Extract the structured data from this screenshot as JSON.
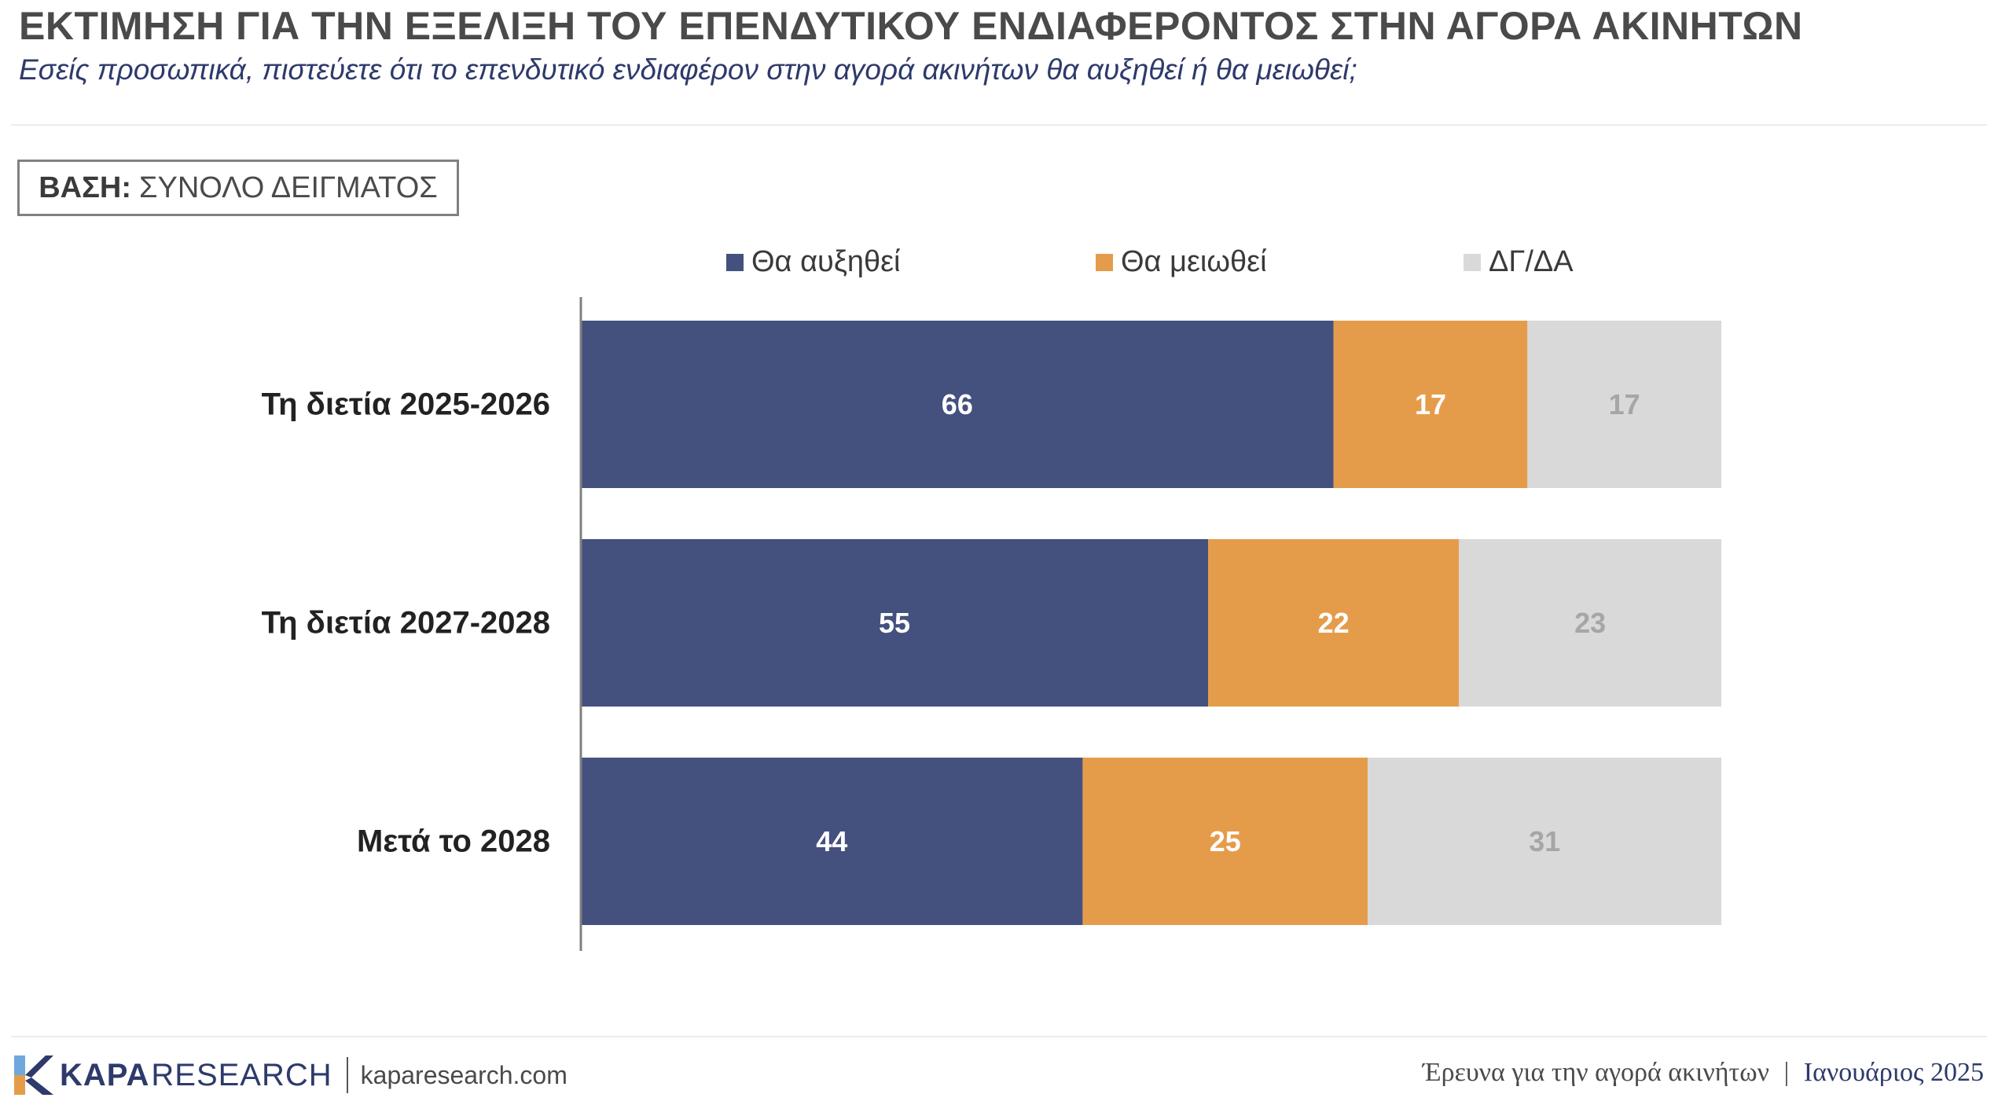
{
  "header": {
    "title": "ΕΚΤΙΜΗΣΗ ΓΙΑ ΤΗΝ ΕΞΕΛΙΞΗ ΤΟΥ ΕΠΕΝΔΥΤΙΚΟΥ ΕΝΔΙΑΦΕΡΟΝΤΟΣ ΣΤΗΝ ΑΓΟΡΑ ΑΚΙΝΗΤΩΝ",
    "subtitle": "Εσείς προσωπικά, πιστεύετε ότι το επενδυτικό ενδιαφέρον στην αγορά ακινήτων θα αυξηθεί ή θα μειωθεί;"
  },
  "base": {
    "label": "ΒΑΣΗ:",
    "value": "ΣΥΝΟΛΟ ΔΕΙΓΜΑΤΟΣ"
  },
  "chart_data": {
    "type": "bar",
    "orientation": "horizontal",
    "stacked": true,
    "categories": [
      "Τη διετία 2025-2026",
      "Τη διετία 2027-2028",
      "Μετά το 2028"
    ],
    "series": [
      {
        "name": "Θα αυξηθεί",
        "values": [
          66,
          55,
          44
        ],
        "color": "#44517e",
        "label_color": "#ffffff"
      },
      {
        "name": "Θα μειωθεί",
        "values": [
          17,
          22,
          25
        ],
        "color": "#e59c4a",
        "label_color": "#ffffff"
      },
      {
        "name": "ΔΓ/ΔΑ",
        "values": [
          17,
          23,
          31
        ],
        "color": "#d9d9d9",
        "label_color": "#a6a6a6"
      }
    ],
    "xlim": [
      0,
      100
    ],
    "grid": false,
    "legend_position": "top"
  },
  "footer": {
    "brand_bold": "KAPA",
    "brand_rest": "RESEARCH",
    "url": "kaparesearch.com",
    "report": "Έρευνα για την αγορά ακινήτων",
    "separator": "|",
    "date": "Ιανουάριος 2025",
    "logo_colors": {
      "top": "#6fa8dc",
      "middle": "#2e3a6b",
      "bottom": "#e59c4a"
    }
  }
}
